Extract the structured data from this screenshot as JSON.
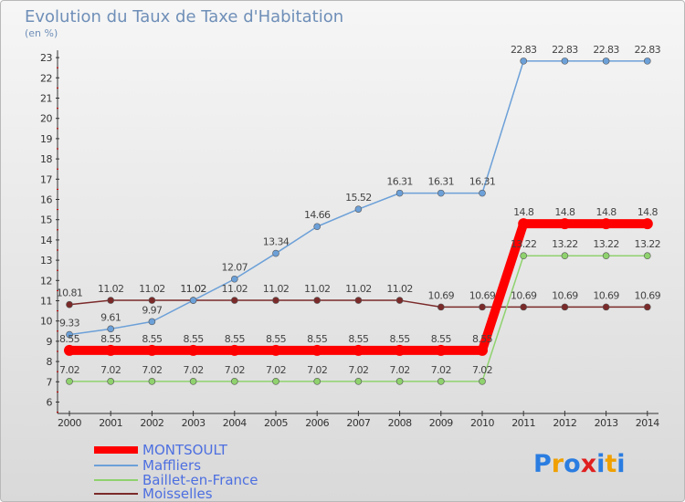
{
  "chart_data": {
    "type": "line",
    "title": "Evolution du Taux de Taxe d'Habitation",
    "subtitle": "(en %)",
    "x": [
      "2000",
      "2001",
      "2002",
      "2003",
      "2004",
      "2005",
      "2006",
      "2007",
      "2008",
      "2009",
      "2010",
      "2011",
      "2012",
      "2013",
      "2014"
    ],
    "ylim": [
      6,
      23
    ],
    "yticks": [
      "6",
      "7",
      "8",
      "9",
      "10",
      "11",
      "12",
      "13",
      "14",
      "15",
      "16",
      "17",
      "18",
      "19",
      "20",
      "21",
      "22",
      "23"
    ],
    "grid": false,
    "legend_position": "bottom-left",
    "series": [
      {
        "name": "Moisselles",
        "color": "#7b2a2a",
        "values": [
          10.81,
          11.02,
          11.02,
          11.02,
          11.02,
          11.02,
          11.02,
          11.02,
          11.02,
          10.69,
          10.69,
          10.69,
          10.69,
          10.69,
          10.69
        ],
        "labels": [
          "10.81",
          "11.02",
          "11.02",
          "11.02",
          "11.02",
          "11.02",
          "11.02",
          "11.02",
          "11.02",
          "10.69",
          "10.69",
          "10.69",
          "10.69",
          "10.69",
          "10.69"
        ]
      },
      {
        "name": "Baillet-en-France",
        "color": "#8fd26e",
        "values": [
          7.02,
          7.02,
          7.02,
          7.02,
          7.02,
          7.02,
          7.02,
          7.02,
          7.02,
          7.02,
          7.02,
          13.22,
          13.22,
          13.22,
          13.22
        ],
        "labels": [
          "7.02",
          "7.02",
          "7.02",
          "7.02",
          "7.02",
          "7.02",
          "7.02",
          "7.02",
          "7.02",
          "7.02",
          "7.02",
          "13.22",
          "13.22",
          "13.22",
          "13.22"
        ]
      },
      {
        "name": "Maffliers",
        "color": "#6ca0d8",
        "values": [
          9.33,
          9.61,
          9.97,
          11.02,
          12.07,
          13.34,
          14.66,
          15.52,
          16.31,
          16.31,
          16.31,
          22.83,
          22.83,
          22.83,
          22.83
        ],
        "labels": [
          "9.33",
          "9.61",
          "9.97",
          "11.02",
          "12.07",
          "13.34",
          "14.66",
          "15.52",
          "16.31",
          "16.31",
          "16.31",
          "22.83",
          "22.83",
          "22.83",
          "22.83"
        ]
      },
      {
        "name": "MONTSOULT",
        "color": "#ff0000",
        "values": [
          8.55,
          8.55,
          8.55,
          8.55,
          8.55,
          8.55,
          8.55,
          8.55,
          8.55,
          8.55,
          8.55,
          14.8,
          14.8,
          14.8,
          14.8
        ],
        "labels": [
          "8.55",
          "8.55",
          "8.55",
          "8.55",
          "8.55",
          "8.55",
          "8.55",
          "8.55",
          "8.55",
          "8.55",
          "8.55",
          "14.8",
          "14.8",
          "14.8",
          "14.8"
        ]
      }
    ],
    "legend": [
      "MONTSOULT",
      "Maffliers",
      "Baillet-en-France",
      "Moisselles"
    ]
  },
  "logo": "Proxiti"
}
